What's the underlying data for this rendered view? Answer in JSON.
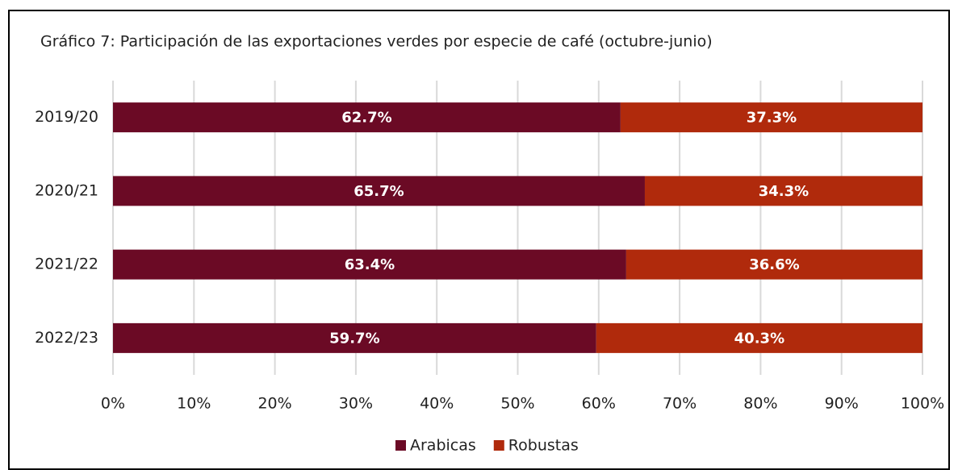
{
  "chart_data": {
    "type": "stacked-bar-horizontal",
    "title": "Gráfico 7: Participación de las exportaciones verdes por especie de café (octubre-junio)",
    "categories": [
      "2019/20",
      "2020/21",
      "2021/22",
      "2022/23"
    ],
    "series": [
      {
        "name": "Arabicas",
        "color": "#6b0a25",
        "values": [
          62.7,
          65.7,
          63.4,
          59.7
        ],
        "value_labels": [
          "62.7%",
          "65.7%",
          "63.4%",
          "59.7%"
        ]
      },
      {
        "name": "Robustas",
        "color": "#b02a0c",
        "values": [
          37.3,
          34.3,
          36.6,
          40.3
        ],
        "value_labels": [
          "37.3%",
          "34.3%",
          "36.6%",
          "40.3%"
        ]
      }
    ],
    "xlim": [
      0,
      100
    ],
    "xticks": [
      {
        "value": 0,
        "label": "0%"
      },
      {
        "value": 10,
        "label": "10%"
      },
      {
        "value": 20,
        "label": "20%"
      },
      {
        "value": 30,
        "label": "30%"
      },
      {
        "value": 40,
        "label": "40%"
      },
      {
        "value": 50,
        "label": "50%"
      },
      {
        "value": 60,
        "label": "60%"
      },
      {
        "value": 70,
        "label": "70%"
      },
      {
        "value": 80,
        "label": "80%"
      },
      {
        "value": 90,
        "label": "90%"
      },
      {
        "value": 100,
        "label": "100%"
      }
    ],
    "grid": true,
    "legend": "bottom"
  }
}
